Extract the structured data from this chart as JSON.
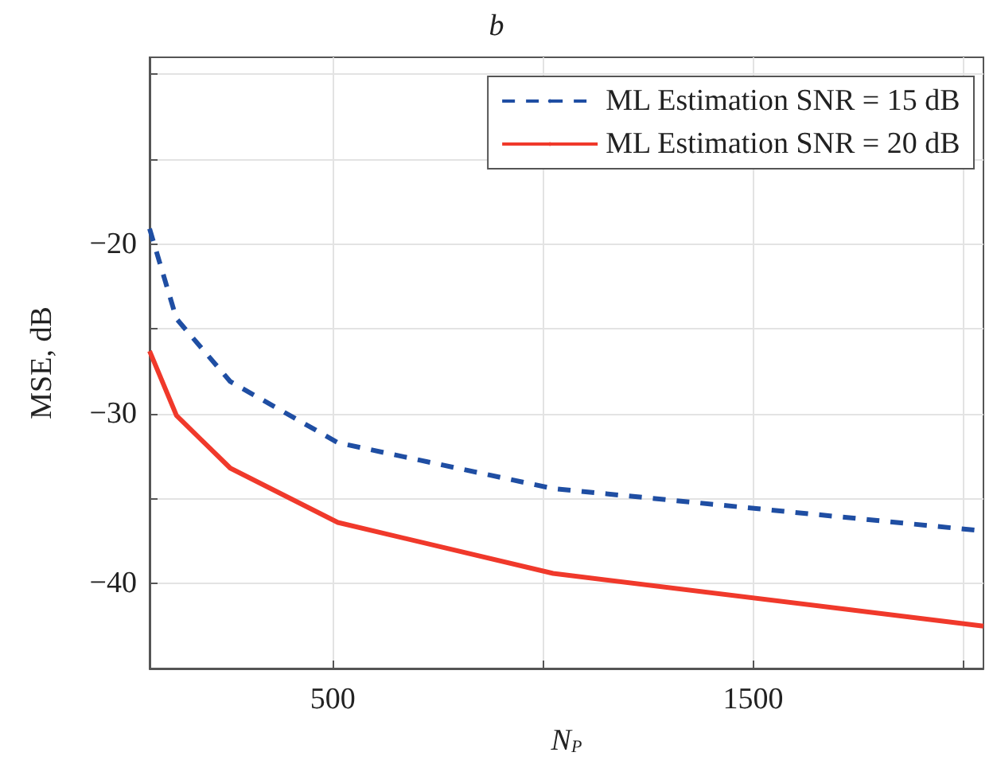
{
  "chart_data": {
    "type": "line",
    "title": "b",
    "xlabel": "N$_{P}$",
    "ylabel": "MSE, dB",
    "x": [
      64,
      128,
      256,
      512,
      1024,
      2048
    ],
    "series": [
      {
        "name": "ML Estimation SNR = 15 dB",
        "color": "#1f4ea3",
        "line_style": "dashed",
        "values": [
          -19.1,
          -24.4,
          -28.1,
          -31.7,
          -34.4,
          -36.9
        ]
      },
      {
        "name": "ML Estimation SNR = 20 dB",
        "color": "#f0392b",
        "line_style": "solid",
        "values": [
          -26.3,
          -30.1,
          -33.2,
          -36.4,
          -39.4,
          -42.5
        ]
      }
    ],
    "xlim": [
      64,
      2048
    ],
    "xticks": [
      500,
      {
        "value": 1000,
        "label": null
      },
      1500,
      {
        "value": 2000,
        "label": null
      }
    ],
    "ylim": [
      -45,
      -9
    ],
    "yticks": [
      -40,
      {
        "value": -35,
        "label": null
      },
      -30,
      {
        "value": -25,
        "label": null
      },
      -20,
      {
        "value": -15,
        "label": null
      },
      {
        "value": -10,
        "label": null
      }
    ],
    "grid": true,
    "legend": "top right",
    "marker": "none"
  }
}
